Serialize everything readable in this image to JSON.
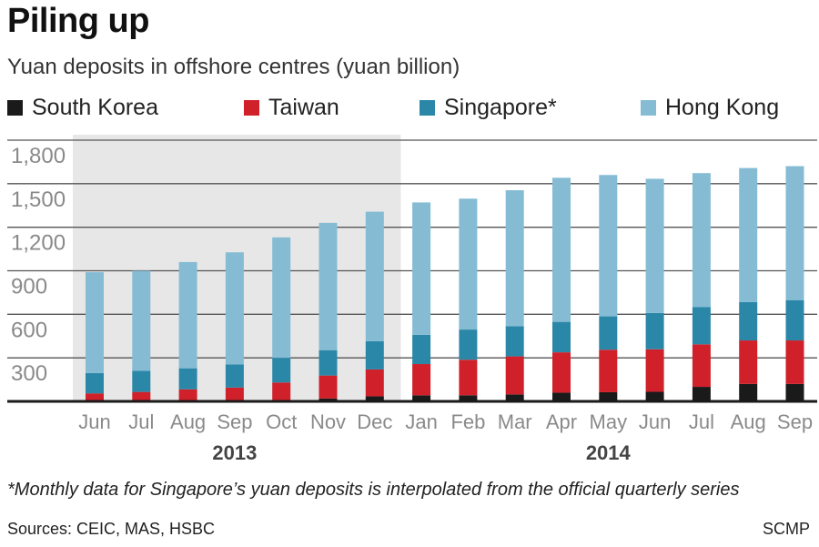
{
  "title": "Piling up",
  "subtitle": "Yuan deposits in offshore centres (yuan billion)",
  "footnote": "*Monthly data for Singapore’s yuan deposits is interpolated from the official quarterly series",
  "sources": "Sources: CEIC, MAS, HSBC",
  "credit": "SCMP",
  "colors": {
    "south_korea": "#1a1a1a",
    "taiwan": "#d0202a",
    "singapore": "#2b87a8",
    "hong_kong": "#85bcd4",
    "shade_2013": "#e7e7e8",
    "grid": "#555555",
    "axis_text": "#8a8a8a"
  },
  "legend": [
    {
      "label": "South Korea",
      "color": "#1a1a1a"
    },
    {
      "label": "Taiwan",
      "color": "#d0202a"
    },
    {
      "label": "Singapore*",
      "color": "#2b87a8"
    },
    {
      "label": "Hong Kong",
      "color": "#85bcd4"
    }
  ],
  "chart_data": {
    "type": "bar",
    "stacked": true,
    "title": "Piling up",
    "subtitle": "Yuan deposits in offshore centres (yuan billion)",
    "categories": [
      "Jun",
      "Jul",
      "Aug",
      "Sep",
      "Oct",
      "Nov",
      "Dec",
      "Jan",
      "Feb",
      "Mar",
      "Apr",
      "May",
      "Jun",
      "Jul",
      "Aug",
      "Sep"
    ],
    "year_groups": [
      {
        "label": "2013",
        "months": 7,
        "shaded": true
      },
      {
        "label": "2014",
        "months": 9,
        "shaded": false
      }
    ],
    "ylim": [
      0,
      1800
    ],
    "yticks": [
      300,
      600,
      900,
      1200,
      1500,
      1800
    ],
    "ytick_labels": [
      "300",
      "600",
      "900",
      "1,200",
      "1,500",
      "1,800"
    ],
    "grid": true,
    "legend_position": "top",
    "series": [
      {
        "name": "South Korea",
        "color": "#1a1a1a",
        "values": [
          5,
          5,
          5,
          5,
          5,
          20,
          35,
          42,
          42,
          48,
          60,
          63,
          66,
          100,
          120,
          120
        ]
      },
      {
        "name": "Taiwan",
        "color": "#d0202a",
        "values": [
          50,
          60,
          78,
          90,
          125,
          158,
          185,
          215,
          245,
          262,
          278,
          293,
          293,
          293,
          300,
          300
        ]
      },
      {
        "name": "Singapore*",
        "color": "#2b87a8",
        "values": [
          140,
          145,
          145,
          160,
          170,
          175,
          195,
          202,
          208,
          208,
          210,
          230,
          250,
          258,
          264,
          278
        ]
      },
      {
        "name": "Hong Kong",
        "color": "#85bcd4",
        "values": [
          695,
          690,
          732,
          772,
          830,
          877,
          892,
          912,
          902,
          937,
          993,
          974,
          925,
          922,
          924,
          923
        ]
      }
    ]
  }
}
